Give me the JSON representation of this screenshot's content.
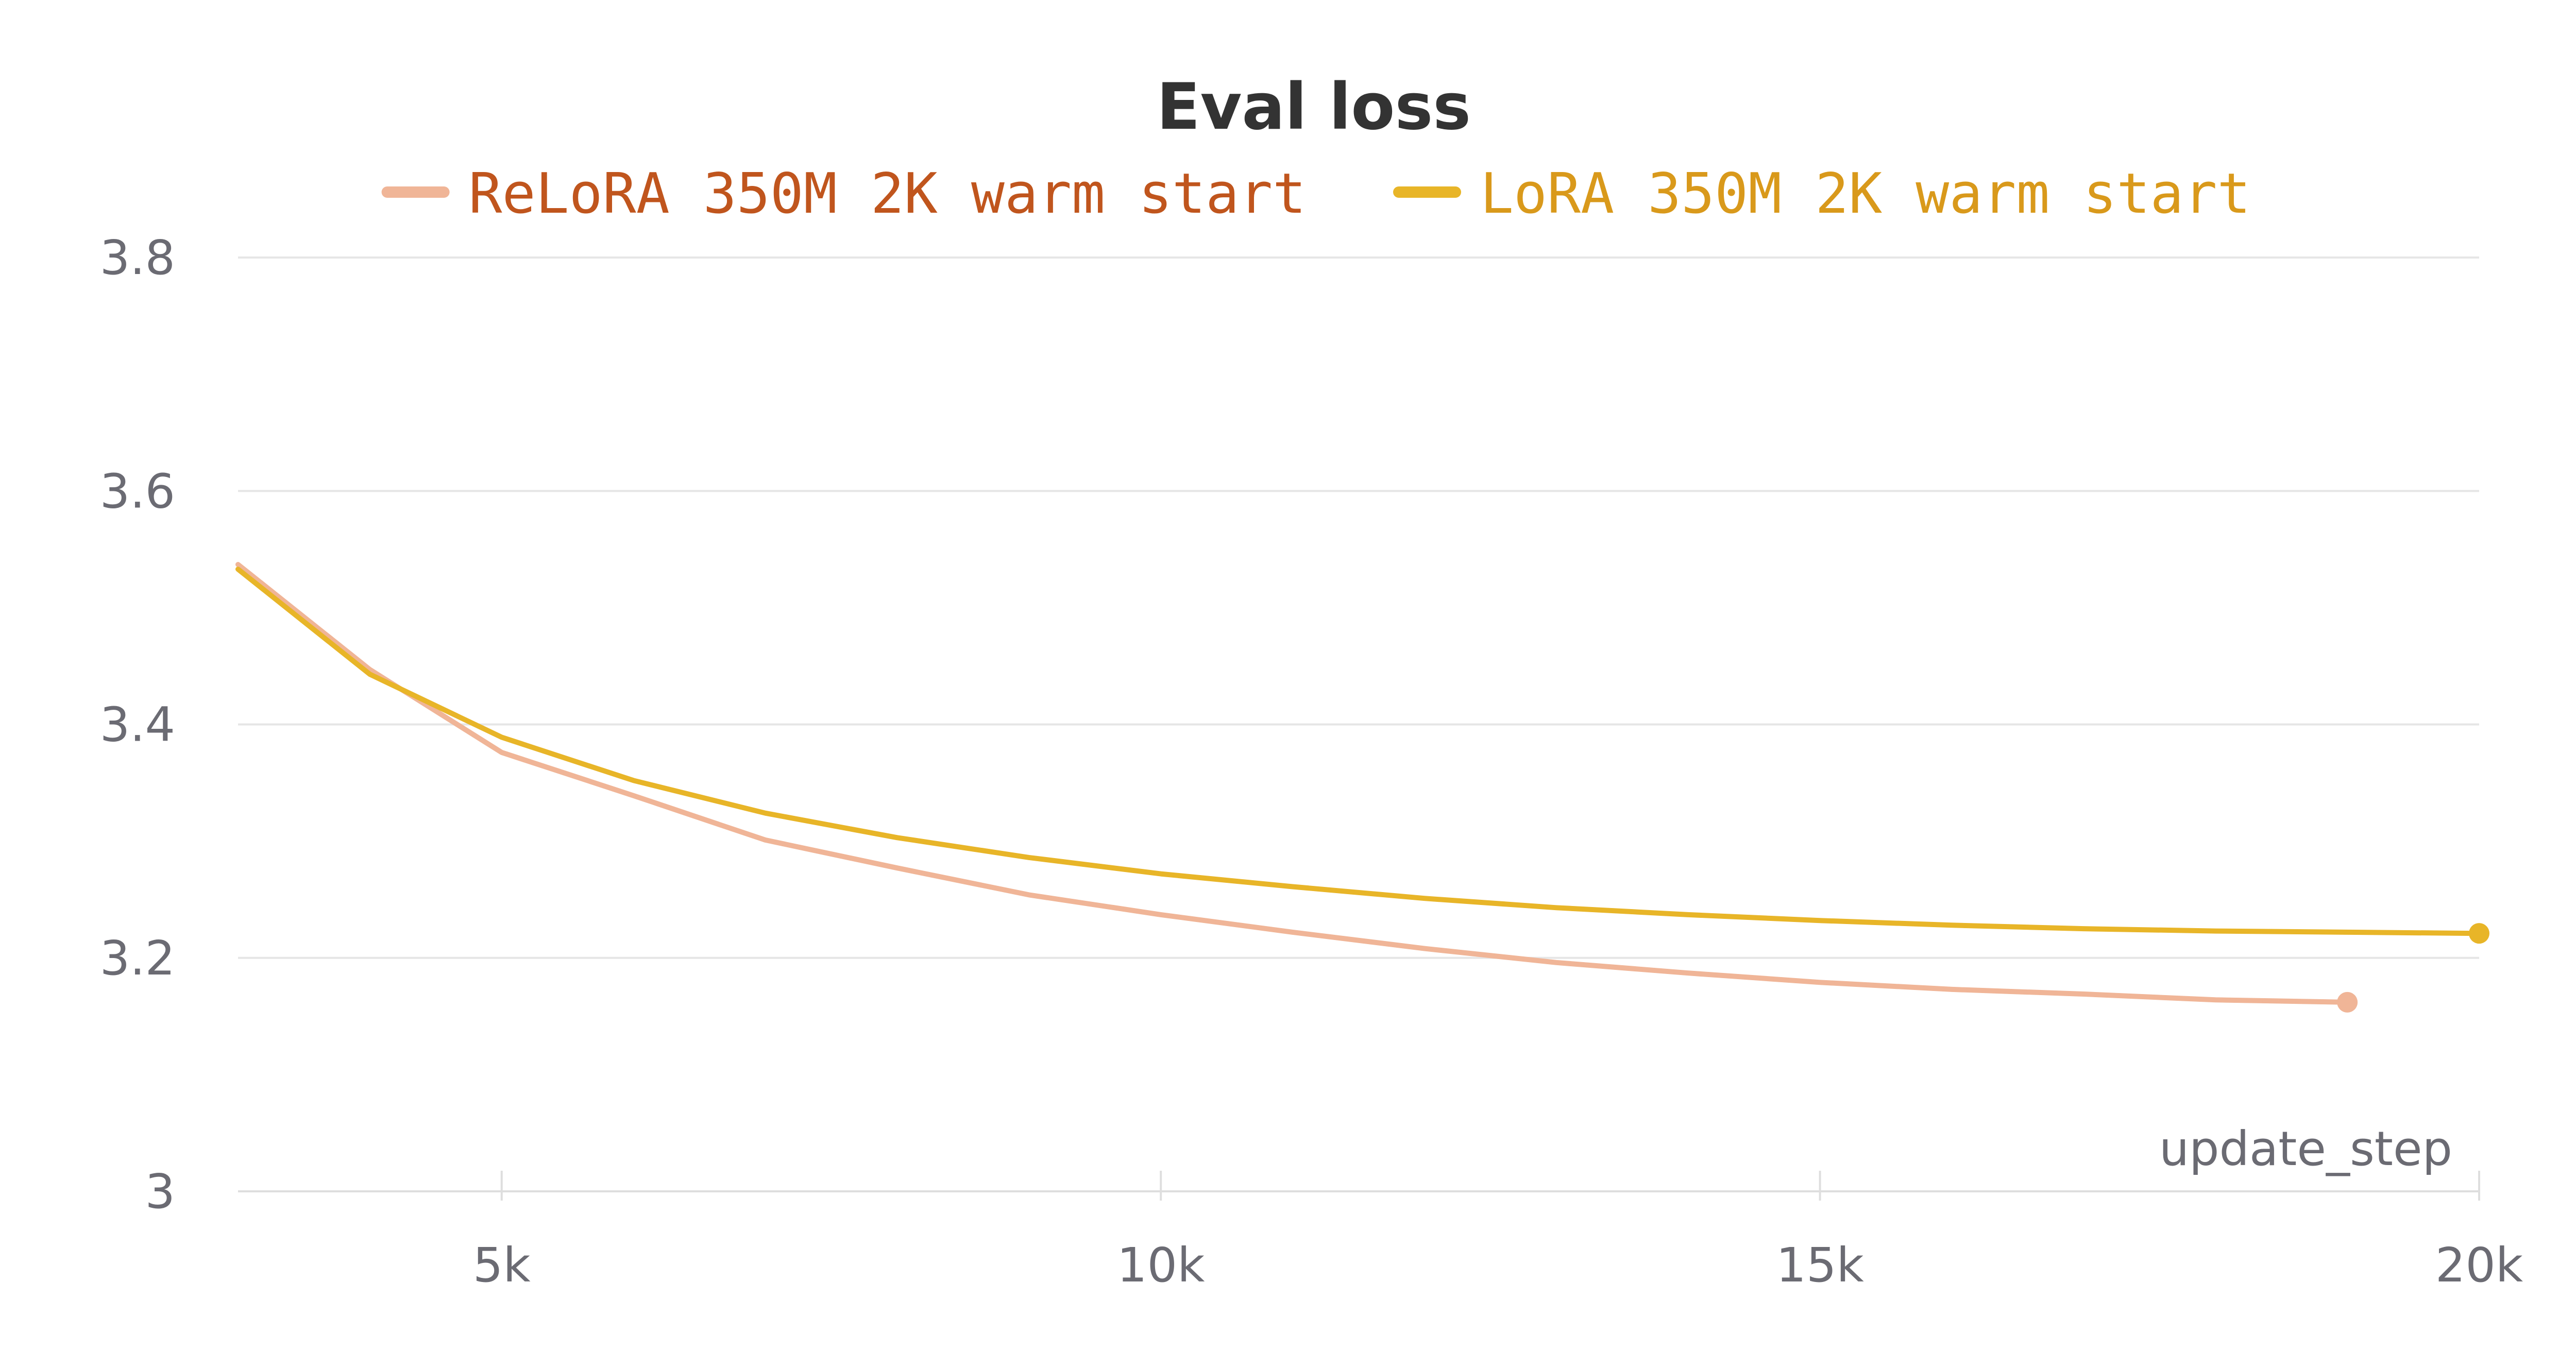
{
  "chart_data": {
    "type": "line",
    "title": "Eval loss",
    "xlabel": "update_step",
    "ylabel": "",
    "xlim": [
      3000,
      20000
    ],
    "ylim": [
      3.0,
      3.8
    ],
    "x_ticks": [
      5000,
      10000,
      15000,
      20000
    ],
    "x_tick_labels": [
      "5k",
      "10k",
      "15k",
      "20k"
    ],
    "y_ticks": [
      3.0,
      3.2,
      3.4,
      3.6,
      3.8
    ],
    "y_tick_labels": [
      "3",
      "3.2",
      "3.4",
      "3.6",
      "3.8"
    ],
    "grid": true,
    "legend_position": "top",
    "series": [
      {
        "name": "ReLoRA 350M 2K warm start",
        "color": "#f0b496",
        "label_color": "#c0561e",
        "end_marker": true,
        "x": [
          3000,
          4000,
          5000,
          6000,
          7000,
          8000,
          9000,
          10000,
          11000,
          12000,
          13000,
          14000,
          15000,
          16000,
          17000,
          18000,
          19000
        ],
        "y": [
          3.537,
          3.447,
          3.376,
          3.339,
          3.301,
          3.277,
          3.254,
          3.237,
          3.222,
          3.208,
          3.196,
          3.187,
          3.179,
          3.173,
          3.169,
          3.164,
          3.162
        ]
      },
      {
        "name": "LoRA 350M 2K warm start",
        "color": "#e8b528",
        "label_color": "#d99a1c",
        "end_marker": true,
        "x": [
          3000,
          4000,
          5000,
          6000,
          7000,
          8000,
          9000,
          10000,
          11000,
          12000,
          13000,
          14000,
          15000,
          16000,
          17000,
          18000,
          19000,
          20000
        ],
        "y": [
          3.533,
          3.443,
          3.389,
          3.352,
          3.324,
          3.303,
          3.286,
          3.272,
          3.261,
          3.251,
          3.243,
          3.237,
          3.232,
          3.228,
          3.225,
          3.223,
          3.222,
          3.221
        ]
      }
    ]
  }
}
